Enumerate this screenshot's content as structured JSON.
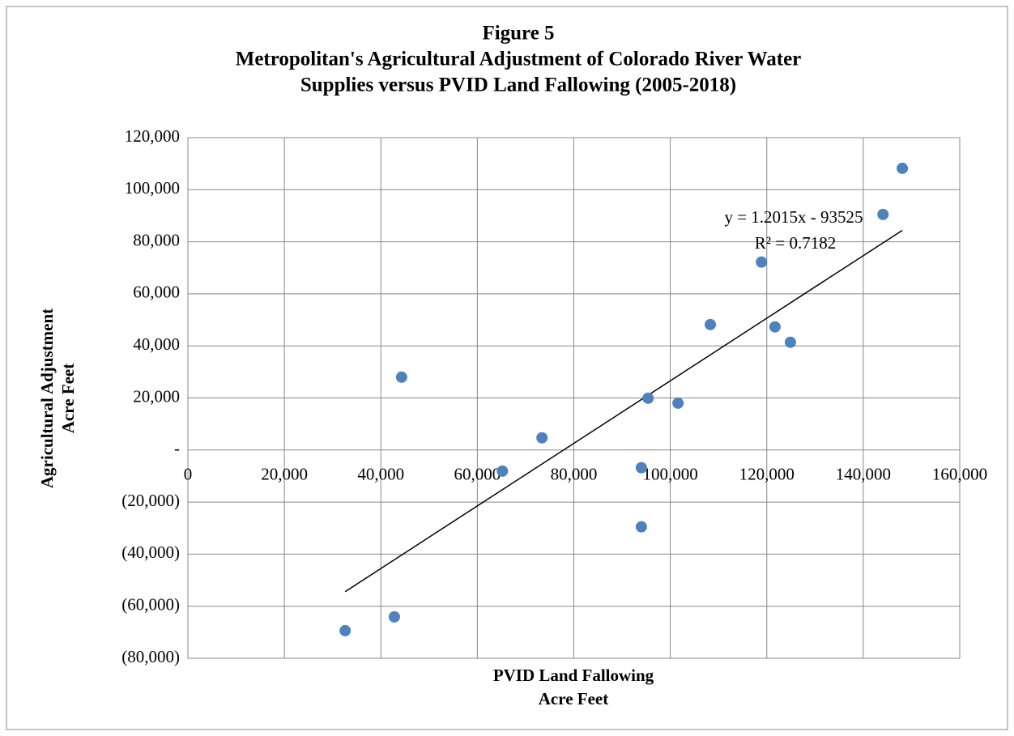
{
  "chart_data": {
    "type": "scatter",
    "title": [
      "Figure 5",
      "Metropolitan's Agricultural Adjustment of Colorado River Water",
      "Supplies versus PVID Land Fallowing (2005-2018)"
    ],
    "xlabel": [
      "PVID Land Fallowing",
      "Acre Feet"
    ],
    "ylabel": [
      "Agricultural Adjustment",
      "Acre Feet"
    ],
    "xlim": [
      0,
      160000
    ],
    "ylim": [
      -80000,
      120000
    ],
    "xticks": [
      0,
      {
        "value": 20000,
        "label": "20,000"
      },
      {
        "value": 40000,
        "label": "40,000"
      },
      {
        "value": 60000,
        "label": "60,000"
      },
      {
        "value": 80000,
        "label": "80,000"
      },
      {
        "value": 100000,
        "label": "100,000"
      },
      {
        "value": 120000,
        "label": "120,000"
      },
      {
        "value": 140000,
        "label": "140,000"
      },
      {
        "value": 160000,
        "label": "160,000"
      }
    ],
    "yticks": [
      {
        "value": -80000,
        "label": "(80,000)"
      },
      {
        "value": -60000,
        "label": "(60,000)"
      },
      {
        "value": -40000,
        "label": "(40,000)"
      },
      {
        "value": -20000,
        "label": "(20,000)"
      },
      {
        "value": 0,
        "label": "-"
      },
      {
        "value": 20000,
        "label": "20,000"
      },
      {
        "value": 40000,
        "label": "40,000"
      },
      {
        "value": 60000,
        "label": "60,000"
      },
      {
        "value": 80000,
        "label": "80,000"
      },
      {
        "value": 100000,
        "label": "100,000"
      },
      {
        "value": 120000,
        "label": "120,000"
      }
    ],
    "grid": true,
    "series": [
      {
        "color": "#4f81bd",
        "x": [
          32600,
          42800,
          44300,
          65200,
          73400,
          94000,
          94000,
          95400,
          101600,
          108300,
          118900,
          121700,
          124900,
          144100,
          148100
        ],
        "values": [
          -69400,
          -64100,
          28000,
          -8100,
          4700,
          -6800,
          -29500,
          19900,
          18000,
          48200,
          72200,
          47300,
          41400,
          90500,
          108200
        ]
      }
    ],
    "trendline": {
      "color": "#000000",
      "x": [
        32600,
        148100
      ],
      "values": [
        -54400,
        84400
      ],
      "equation": "y = 1.2015x - 93525",
      "r_squared": "R² = 0.7182"
    }
  }
}
